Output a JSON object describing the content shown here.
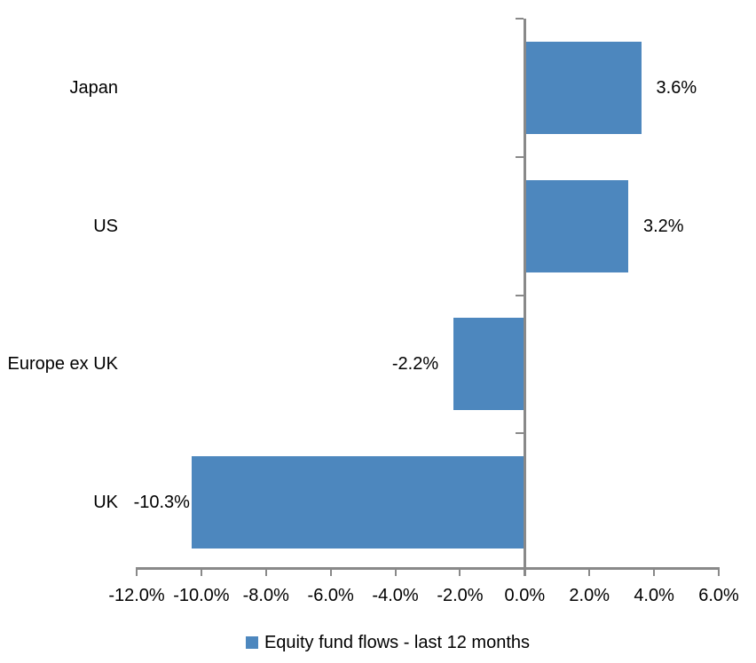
{
  "chart_data": {
    "type": "bar",
    "orientation": "horizontal",
    "categories": [
      "Japan",
      "US",
      "Europe ex UK",
      "UK"
    ],
    "values": [
      3.6,
      3.2,
      -2.2,
      -10.3
    ],
    "data_labels": [
      "3.6%",
      "3.2%",
      "-2.2%",
      "-10.3%"
    ],
    "series": [
      {
        "name": "Equity fund flows - last 12 months",
        "values": [
          3.6,
          3.2,
          -2.2,
          -10.3
        ]
      }
    ],
    "series_name": "Equity fund flows - last 12 months",
    "xlabel": "",
    "ylabel": "",
    "xlim": [
      -12,
      6
    ],
    "x_ticks": [
      -12,
      -10,
      -8,
      -6,
      -4,
      -2,
      0,
      2,
      4,
      6
    ],
    "x_tick_labels": [
      "-12.0%",
      "-10.0%",
      "-8.0%",
      "-6.0%",
      "-4.0%",
      "-2.0%",
      "0.0%",
      "2.0%",
      "4.0%",
      "6.0%"
    ],
    "grid": false,
    "legend_position": "bottom",
    "bar_color": "#4D87BE",
    "axis_color": "#898989",
    "text_color": "#000000",
    "background_color": "#FFFFFF"
  },
  "legend": {
    "label": "Equity fund flows - last 12 months"
  }
}
